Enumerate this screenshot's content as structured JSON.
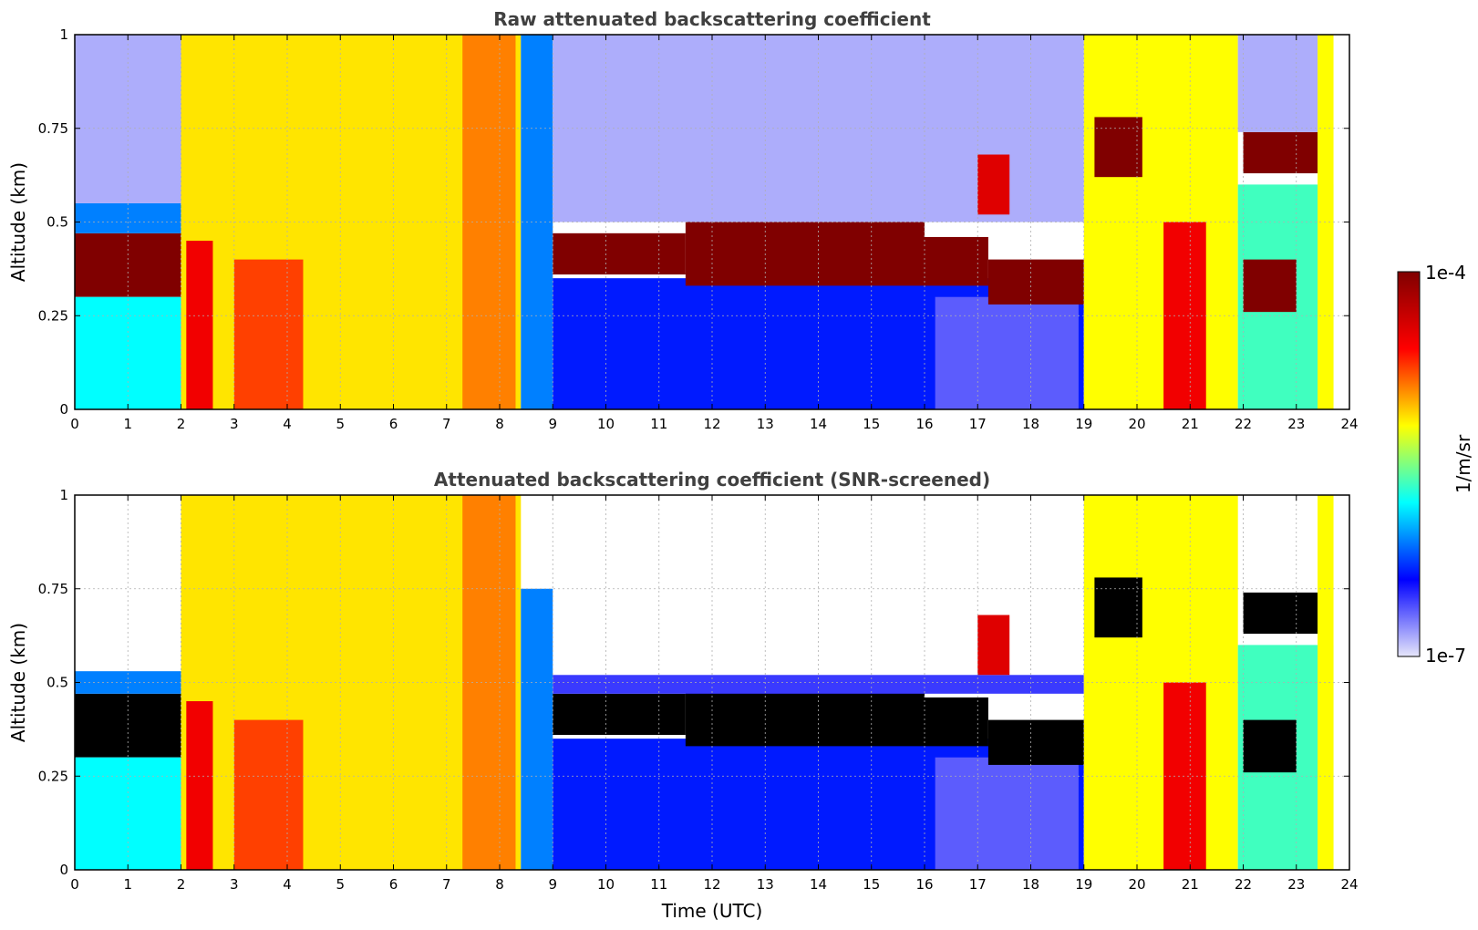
{
  "figure": {
    "xlabel": "Time (UTC)"
  },
  "colorbar": {
    "label": "1/m/sr",
    "max_label": "1e-4",
    "min_label": "1e-7",
    "scale": "log",
    "range": [
      1e-07,
      0.0001
    ],
    "colormap": "jet",
    "colors": [
      "#e6e6fa",
      "#0000ff",
      "#00ffff",
      "#ffff00",
      "#ff0000",
      "#800000"
    ]
  },
  "chart_data": [
    {
      "type": "heatmap",
      "title": "Raw attenuated backscattering coefficient",
      "xlabel": "",
      "ylabel": "Altitude (km)",
      "xlim": [
        0,
        24
      ],
      "ylim": [
        0,
        1
      ],
      "xticks": [
        "0",
        "1",
        "2",
        "3",
        "4",
        "5",
        "6",
        "7",
        "8",
        "9",
        "10",
        "11",
        "12",
        "13",
        "14",
        "15",
        "16",
        "17",
        "18",
        "19",
        "20",
        "21",
        "22",
        "23",
        "24"
      ],
      "yticks": [
        "0",
        "0.25",
        "0.5",
        "0.75",
        "1"
      ],
      "grid": true,
      "cells": [
        {
          "x": [
            0,
            2
          ],
          "y": [
            0.3,
            0.47
          ],
          "level": 1.0
        },
        {
          "x": [
            0,
            2
          ],
          "y": [
            0.47,
            0.55
          ],
          "level": 0.3
        },
        {
          "x": [
            0,
            2
          ],
          "y": [
            0.0,
            0.3
          ],
          "level": 0.4
        },
        {
          "x": [
            0,
            2
          ],
          "y": [
            0.55,
            1.0
          ],
          "level": 0.05
        },
        {
          "x": [
            2,
            8.4
          ],
          "y": [
            0.0,
            1.0
          ],
          "level": 0.62
        },
        {
          "x": [
            2.1,
            2.6
          ],
          "y": [
            0.0,
            0.45
          ],
          "level": 0.82
        },
        {
          "x": [
            3.0,
            4.3
          ],
          "y": [
            0.0,
            0.4
          ],
          "level": 0.75
        },
        {
          "x": [
            7.3,
            8.3
          ],
          "y": [
            0.0,
            1.0
          ],
          "level": 0.7
        },
        {
          "x": [
            8.4,
            9.0
          ],
          "y": [
            0.0,
            1.0
          ],
          "level": 0.3
        },
        {
          "x": [
            9,
            19
          ],
          "y": [
            0.0,
            0.35
          ],
          "level": 0.22
        },
        {
          "x": [
            16.2,
            18.9
          ],
          "y": [
            0.0,
            0.3
          ],
          "level": 0.12
        },
        {
          "x": [
            9,
            11.5
          ],
          "y": [
            0.36,
            0.47
          ],
          "level": 1.0
        },
        {
          "x": [
            11.5,
            16
          ],
          "y": [
            0.33,
            0.5
          ],
          "level": 1.0
        },
        {
          "x": [
            16,
            17.2
          ],
          "y": [
            0.33,
            0.46
          ],
          "level": 1.0
        },
        {
          "x": [
            17.2,
            19
          ],
          "y": [
            0.28,
            0.4
          ],
          "level": 1.0
        },
        {
          "x": [
            9,
            19
          ],
          "y": [
            0.5,
            1.0
          ],
          "level": 0.05
        },
        {
          "x": [
            17.0,
            17.6
          ],
          "y": [
            0.52,
            0.68
          ],
          "level": 0.85
        },
        {
          "x": [
            19,
            21.9
          ],
          "y": [
            0.0,
            1.0
          ],
          "level": 0.6
        },
        {
          "x": [
            19.2,
            20.1
          ],
          "y": [
            0.62,
            0.78
          ],
          "level": 1.0
        },
        {
          "x": [
            20.5,
            21.3
          ],
          "y": [
            0.0,
            0.5
          ],
          "level": 0.82
        },
        {
          "x": [
            21.9,
            23.7
          ],
          "y": [
            0.0,
            0.6
          ],
          "level": 0.45
        },
        {
          "x": [
            22.0,
            23.4
          ],
          "y": [
            0.63,
            0.74
          ],
          "level": 1.0
        },
        {
          "x": [
            21.9,
            23.4
          ],
          "y": [
            0.74,
            1.0
          ],
          "level": 0.05
        },
        {
          "x": [
            22.0,
            23.0
          ],
          "y": [
            0.26,
            0.4
          ],
          "level": 1.0
        },
        {
          "x": [
            23.4,
            23.7
          ],
          "y": [
            0.0,
            1.0
          ],
          "level": 0.6
        }
      ]
    },
    {
      "type": "heatmap",
      "title": "Attenuated backscattering coefficient (SNR-screened)",
      "xlabel": "Time (UTC)",
      "ylabel": "Altitude (km)",
      "xlim": [
        0,
        24
      ],
      "ylim": [
        0,
        1
      ],
      "xticks": [
        "0",
        "1",
        "2",
        "3",
        "4",
        "5",
        "6",
        "7",
        "8",
        "9",
        "10",
        "11",
        "12",
        "13",
        "14",
        "15",
        "16",
        "17",
        "18",
        "19",
        "20",
        "21",
        "22",
        "23",
        "24"
      ],
      "yticks": [
        "0",
        "0.25",
        "0.5",
        "0.75",
        "1"
      ],
      "grid": true,
      "cells": [
        {
          "x": [
            0,
            2
          ],
          "y": [
            0.3,
            0.47
          ],
          "level": 1.0
        },
        {
          "x": [
            0,
            2
          ],
          "y": [
            0.47,
            0.53
          ],
          "level": 0.3
        },
        {
          "x": [
            0,
            2
          ],
          "y": [
            0.0,
            0.3
          ],
          "level": 0.4
        },
        {
          "x": [
            2,
            8.4
          ],
          "y": [
            0.0,
            1.0
          ],
          "level": 0.62
        },
        {
          "x": [
            2.1,
            2.6
          ],
          "y": [
            0.0,
            0.45
          ],
          "level": 0.82
        },
        {
          "x": [
            3.0,
            4.3
          ],
          "y": [
            0.0,
            0.4
          ],
          "level": 0.75
        },
        {
          "x": [
            7.3,
            8.3
          ],
          "y": [
            0.0,
            1.0
          ],
          "level": 0.7
        },
        {
          "x": [
            8.4,
            9.0
          ],
          "y": [
            0.0,
            0.75
          ],
          "level": 0.3
        },
        {
          "x": [
            9,
            19
          ],
          "y": [
            0.0,
            0.35
          ],
          "level": 0.22
        },
        {
          "x": [
            16.2,
            18.9
          ],
          "y": [
            0.0,
            0.3
          ],
          "level": 0.12
        },
        {
          "x": [
            9,
            11.5
          ],
          "y": [
            0.36,
            0.47
          ],
          "level": 1.0
        },
        {
          "x": [
            11.5,
            16
          ],
          "y": [
            0.33,
            0.5
          ],
          "level": 1.0
        },
        {
          "x": [
            16,
            17.2
          ],
          "y": [
            0.33,
            0.46
          ],
          "level": 1.0
        },
        {
          "x": [
            17.2,
            19
          ],
          "y": [
            0.28,
            0.4
          ],
          "level": 1.0
        },
        {
          "x": [
            9,
            19
          ],
          "y": [
            0.47,
            0.52
          ],
          "level": 0.15
        },
        {
          "x": [
            17.0,
            17.6
          ],
          "y": [
            0.52,
            0.68
          ],
          "level": 0.85
        },
        {
          "x": [
            19,
            21.9
          ],
          "y": [
            0.0,
            1.0
          ],
          "level": 0.6
        },
        {
          "x": [
            19.2,
            20.1
          ],
          "y": [
            0.62,
            0.78
          ],
          "level": 1.0
        },
        {
          "x": [
            20.5,
            21.3
          ],
          "y": [
            0.0,
            0.5
          ],
          "level": 0.82
        },
        {
          "x": [
            21.9,
            23.7
          ],
          "y": [
            0.0,
            0.6
          ],
          "level": 0.45
        },
        {
          "x": [
            22.0,
            23.4
          ],
          "y": [
            0.63,
            0.74
          ],
          "level": 1.0
        },
        {
          "x": [
            22.0,
            23.0
          ],
          "y": [
            0.26,
            0.4
          ],
          "level": 1.0
        },
        {
          "x": [
            23.4,
            23.7
          ],
          "y": [
            0.0,
            1.0
          ],
          "level": 0.6
        }
      ],
      "saturated_color": "#000000"
    }
  ]
}
